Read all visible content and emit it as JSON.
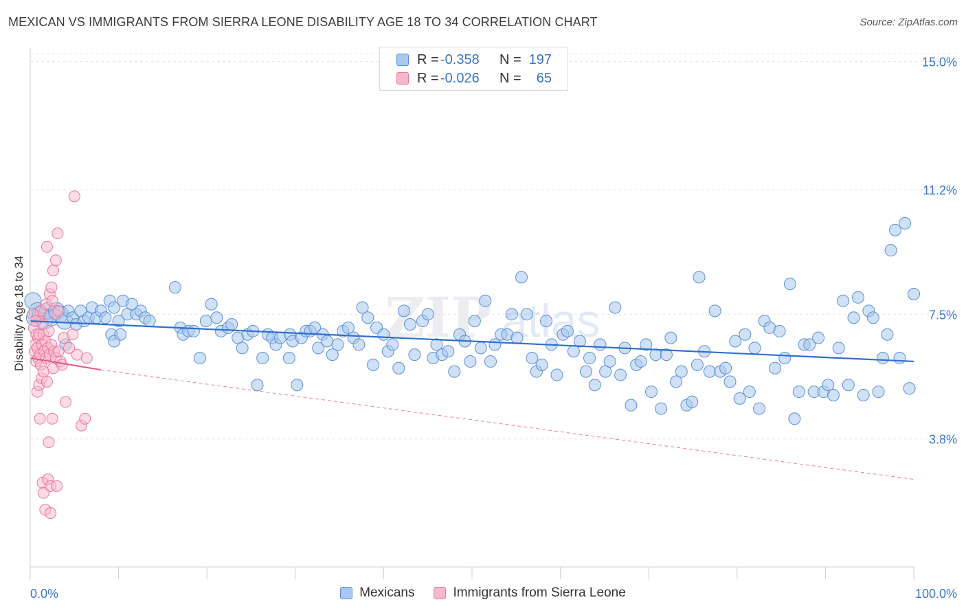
{
  "header": {
    "title": "MEXICAN VS IMMIGRANTS FROM SIERRA LEONE DISABILITY AGE 18 TO 34 CORRELATION CHART",
    "source": "Source: ZipAtlas.com"
  },
  "legend_top": {
    "rows": [
      {
        "r_key": "R =",
        "r_value": "-0.358",
        "n_key": "N =",
        "n_value": "197"
      },
      {
        "r_key": "R =",
        "r_value": "-0.026",
        "n_key": "N =",
        "n_value": "65"
      }
    ]
  },
  "legend_bottom": {
    "items": [
      {
        "label": "Mexicans"
      },
      {
        "label": "Immigrants from Sierra Leone"
      }
    ]
  },
  "colors": {
    "blue_fill": "#a9c8ef",
    "blue_stroke": "#5a8fd6",
    "blue_line": "#2f6fcf",
    "pink_fill": "#f7b8cb",
    "pink_stroke": "#e8789c",
    "pink_line": "#e55a86",
    "grid": "#e6e6e6",
    "axis_text": "#3a74c8"
  },
  "chart_data": {
    "type": "scatter",
    "title": "MEXICAN VS IMMIGRANTS FROM SIERRA LEONE DISABILITY AGE 18 TO 34 CORRELATION CHART",
    "xlabel": "",
    "ylabel": "Disability Age 18 to 34",
    "xlim": [
      0,
      100
    ],
    "ylim": [
      0,
      15.4
    ],
    "x_tick_labels": [
      "0.0%",
      "100.0%"
    ],
    "y_ticks": [
      3.8,
      7.5,
      11.2,
      15.0
    ],
    "y_tick_labels": [
      "3.8%",
      "7.5%",
      "11.2%",
      "15.0%"
    ],
    "grid": true,
    "legend_position": "top-center",
    "watermark": "ZIPatlas",
    "series": [
      {
        "name": "Mexicans",
        "r": -0.358,
        "n": 197,
        "trend": {
          "x": [
            0,
            100
          ],
          "y": [
            7.3,
            6.1
          ]
        },
        "points": [
          [
            0.3,
            7.9
          ],
          [
            0.5,
            7.4
          ],
          [
            0.8,
            7.6
          ],
          [
            1.2,
            7.5
          ],
          [
            1.6,
            7.3
          ],
          [
            2.0,
            7.6
          ],
          [
            2.4,
            7.4
          ],
          [
            3.0,
            7.6
          ],
          [
            3.4,
            7.5
          ],
          [
            3.9,
            7.3
          ],
          [
            4.3,
            7.6
          ],
          [
            4.8,
            7.4
          ],
          [
            5.2,
            7.2
          ],
          [
            5.7,
            7.6
          ],
          [
            6.1,
            7.3
          ],
          [
            6.6,
            7.4
          ],
          [
            7.0,
            7.7
          ],
          [
            7.5,
            7.4
          ],
          [
            8.0,
            7.6
          ],
          [
            8.5,
            7.4
          ],
          [
            9.0,
            7.9
          ],
          [
            9.5,
            7.7
          ],
          [
            10.0,
            7.3
          ],
          [
            10.5,
            7.9
          ],
          [
            11.0,
            7.5
          ],
          [
            11.5,
            7.8
          ],
          [
            12.0,
            7.5
          ],
          [
            12.5,
            7.6
          ],
          [
            13.0,
            7.4
          ],
          [
            13.5,
            7.3
          ],
          [
            4.0,
            6.6
          ],
          [
            9.2,
            6.9
          ],
          [
            9.5,
            6.7
          ],
          [
            10.2,
            6.9
          ],
          [
            16.4,
            8.3
          ],
          [
            17.0,
            7.1
          ],
          [
            17.3,
            6.9
          ],
          [
            17.9,
            7.0
          ],
          [
            18.5,
            7.0
          ],
          [
            19.2,
            6.2
          ],
          [
            19.9,
            7.3
          ],
          [
            20.5,
            7.8
          ],
          [
            21.1,
            7.4
          ],
          [
            21.6,
            7.0
          ],
          [
            22.4,
            7.1
          ],
          [
            22.8,
            7.2
          ],
          [
            23.5,
            6.8
          ],
          [
            24.0,
            6.5
          ],
          [
            24.6,
            6.9
          ],
          [
            25.2,
            7.0
          ],
          [
            25.7,
            5.4
          ],
          [
            26.3,
            6.2
          ],
          [
            26.9,
            6.9
          ],
          [
            27.4,
            6.8
          ],
          [
            27.8,
            6.6
          ],
          [
            28.3,
            6.8
          ],
          [
            29.3,
            6.2
          ],
          [
            29.4,
            6.9
          ],
          [
            29.7,
            6.7
          ],
          [
            30.2,
            5.4
          ],
          [
            30.7,
            6.8
          ],
          [
            31.2,
            7.0
          ],
          [
            31.7,
            7.0
          ],
          [
            32.2,
            7.1
          ],
          [
            32.6,
            6.5
          ],
          [
            33.1,
            6.9
          ],
          [
            33.6,
            6.7
          ],
          [
            34.2,
            6.3
          ],
          [
            34.8,
            6.6
          ],
          [
            35.4,
            7.0
          ],
          [
            36.0,
            7.1
          ],
          [
            36.6,
            6.8
          ],
          [
            37.2,
            6.6
          ],
          [
            37.6,
            7.7
          ],
          [
            38.2,
            7.4
          ],
          [
            38.8,
            6.0
          ],
          [
            39.2,
            7.1
          ],
          [
            40.0,
            6.9
          ],
          [
            40.5,
            6.4
          ],
          [
            41.0,
            6.6
          ],
          [
            41.7,
            5.9
          ],
          [
            42.3,
            7.6
          ],
          [
            43.0,
            7.2
          ],
          [
            43.5,
            6.3
          ],
          [
            44.4,
            7.3
          ],
          [
            45.0,
            7.5
          ],
          [
            45.6,
            6.2
          ],
          [
            46.0,
            6.6
          ],
          [
            46.6,
            6.3
          ],
          [
            47.3,
            6.4
          ],
          [
            48.0,
            5.8
          ],
          [
            48.6,
            6.9
          ],
          [
            49.2,
            6.7
          ],
          [
            49.8,
            6.1
          ],
          [
            50.3,
            7.3
          ],
          [
            51.0,
            6.5
          ],
          [
            51.5,
            7.9
          ],
          [
            52.1,
            6.1
          ],
          [
            52.6,
            6.6
          ],
          [
            53.3,
            6.9
          ],
          [
            54.0,
            6.9
          ],
          [
            54.5,
            7.5
          ],
          [
            55.1,
            6.8
          ],
          [
            55.6,
            8.6
          ],
          [
            56.2,
            7.5
          ],
          [
            56.8,
            6.2
          ],
          [
            57.3,
            5.8
          ],
          [
            57.9,
            6.0
          ],
          [
            58.4,
            7.3
          ],
          [
            59.0,
            6.6
          ],
          [
            59.6,
            5.7
          ],
          [
            60.3,
            6.9
          ],
          [
            60.8,
            7.0
          ],
          [
            61.5,
            6.4
          ],
          [
            62.2,
            6.7
          ],
          [
            62.9,
            5.8
          ],
          [
            63.3,
            6.2
          ],
          [
            63.9,
            5.4
          ],
          [
            64.5,
            6.6
          ],
          [
            65.1,
            5.8
          ],
          [
            65.6,
            6.1
          ],
          [
            66.2,
            7.7
          ],
          [
            66.8,
            5.7
          ],
          [
            67.3,
            6.5
          ],
          [
            68.0,
            4.8
          ],
          [
            68.6,
            6.0
          ],
          [
            69.1,
            6.1
          ],
          [
            69.7,
            6.6
          ],
          [
            70.3,
            5.2
          ],
          [
            70.8,
            6.3
          ],
          [
            71.4,
            4.7
          ],
          [
            72.0,
            6.3
          ],
          [
            72.5,
            6.8
          ],
          [
            73.1,
            5.5
          ],
          [
            73.7,
            5.8
          ],
          [
            74.3,
            4.8
          ],
          [
            74.9,
            4.9
          ],
          [
            75.5,
            6.0
          ],
          [
            75.7,
            8.6
          ],
          [
            76.3,
            6.4
          ],
          [
            76.9,
            5.8
          ],
          [
            77.5,
            7.6
          ],
          [
            78.1,
            5.8
          ],
          [
            78.7,
            5.9
          ],
          [
            79.2,
            5.5
          ],
          [
            79.8,
            6.7
          ],
          [
            80.3,
            5.0
          ],
          [
            80.9,
            6.9
          ],
          [
            81.4,
            5.2
          ],
          [
            82.0,
            6.5
          ],
          [
            82.5,
            4.7
          ],
          [
            83.1,
            7.3
          ],
          [
            83.7,
            7.1
          ],
          [
            84.3,
            5.9
          ],
          [
            84.8,
            7.0
          ],
          [
            85.4,
            6.2
          ],
          [
            86.0,
            8.4
          ],
          [
            86.5,
            4.4
          ],
          [
            87.0,
            5.2
          ],
          [
            87.6,
            6.6
          ],
          [
            88.2,
            6.6
          ],
          [
            88.7,
            5.2
          ],
          [
            89.2,
            6.8
          ],
          [
            89.8,
            5.2
          ],
          [
            90.3,
            5.4
          ],
          [
            90.9,
            5.1
          ],
          [
            91.5,
            6.5
          ],
          [
            92.0,
            7.9
          ],
          [
            92.6,
            5.4
          ],
          [
            93.2,
            7.4
          ],
          [
            93.7,
            8.0
          ],
          [
            94.3,
            5.1
          ],
          [
            94.9,
            7.6
          ],
          [
            95.4,
            7.4
          ],
          [
            96.0,
            5.2
          ],
          [
            96.5,
            6.2
          ],
          [
            97.0,
            6.9
          ],
          [
            97.4,
            9.4
          ],
          [
            97.9,
            10.0
          ],
          [
            98.4,
            6.2
          ],
          [
            99.0,
            10.2
          ],
          [
            99.5,
            5.3
          ],
          [
            100.0,
            8.1
          ]
        ]
      },
      {
        "name": "Immigrants from Sierra Leone",
        "r": -0.026,
        "n": 65,
        "trend": {
          "x": [
            0,
            8.0
          ],
          "y": [
            6.2,
            5.85
          ]
        },
        "extrapolated": {
          "x": [
            8.0,
            100.0
          ],
          "y": [
            5.85,
            2.6
          ]
        },
        "points": [
          [
            0.4,
            7.1
          ],
          [
            0.5,
            6.4
          ],
          [
            0.6,
            6.6
          ],
          [
            0.7,
            6.9
          ],
          [
            0.7,
            6.1
          ],
          [
            0.8,
            6.5
          ],
          [
            0.8,
            5.2
          ],
          [
            0.9,
            6.8
          ],
          [
            0.9,
            6.2
          ],
          [
            1.0,
            7.4
          ],
          [
            1.0,
            5.4
          ],
          [
            1.1,
            6.3
          ],
          [
            1.1,
            4.4
          ],
          [
            1.2,
            7.6
          ],
          [
            1.2,
            6.0
          ],
          [
            1.3,
            6.6
          ],
          [
            1.3,
            5.6
          ],
          [
            1.4,
            7.2
          ],
          [
            1.4,
            2.5
          ],
          [
            1.5,
            6.9
          ],
          [
            1.5,
            5.8
          ],
          [
            1.5,
            2.2
          ],
          [
            1.6,
            6.4
          ],
          [
            1.7,
            6.7
          ],
          [
            1.7,
            1.7
          ],
          [
            1.8,
            7.8
          ],
          [
            1.8,
            6.2
          ],
          [
            1.9,
            9.5
          ],
          [
            1.9,
            5.5
          ],
          [
            2.0,
            6.5
          ],
          [
            2.0,
            2.6
          ],
          [
            2.1,
            7.0
          ],
          [
            2.1,
            3.7
          ],
          [
            2.2,
            8.1
          ],
          [
            2.2,
            6.3
          ],
          [
            2.3,
            2.4
          ],
          [
            2.3,
            1.6
          ],
          [
            2.4,
            8.3
          ],
          [
            2.4,
            6.6
          ],
          [
            2.5,
            7.9
          ],
          [
            2.5,
            4.4
          ],
          [
            2.6,
            8.8
          ],
          [
            2.6,
            5.9
          ],
          [
            2.7,
            6.4
          ],
          [
            2.8,
            7.5
          ],
          [
            2.9,
            9.1
          ],
          [
            2.9,
            6.2
          ],
          [
            3.0,
            2.4
          ],
          [
            3.1,
            9.9
          ],
          [
            3.2,
            7.6
          ],
          [
            3.2,
            6.4
          ],
          [
            3.4,
            6.1
          ],
          [
            3.6,
            6.0
          ],
          [
            3.8,
            6.8
          ],
          [
            4.0,
            4.9
          ],
          [
            4.4,
            6.5
          ],
          [
            4.8,
            6.9
          ],
          [
            5.0,
            11.0
          ],
          [
            5.3,
            6.3
          ],
          [
            5.8,
            4.2
          ],
          [
            6.2,
            4.4
          ],
          [
            6.4,
            6.2
          ],
          [
            0.3,
            7.5
          ],
          [
            0.6,
            7.3
          ],
          [
            1.0,
            6.9
          ]
        ]
      }
    ]
  }
}
